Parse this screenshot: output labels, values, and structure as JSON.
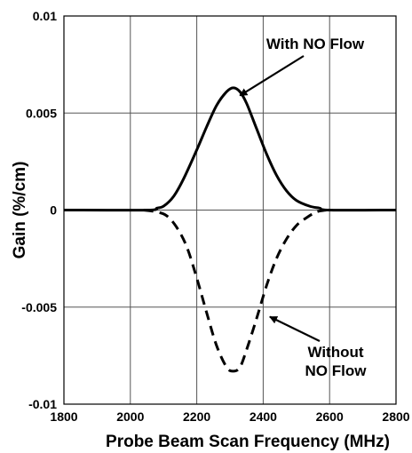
{
  "chart_data": {
    "type": "line",
    "title": "",
    "xlabel": "Probe Beam Scan Frequency (MHz)",
    "ylabel": "Gain (%/cm)",
    "xlim": [
      1800,
      2800
    ],
    "ylim": [
      -0.01,
      0.01
    ],
    "x_ticks": [
      1800,
      2000,
      2200,
      2400,
      2600,
      2800
    ],
    "x_tick_labels": [
      "1800",
      "2000",
      "2200",
      "2400",
      "2600",
      "2800"
    ],
    "y_ticks": [
      -0.01,
      -0.005,
      0,
      0.005,
      0.01
    ],
    "y_tick_labels": [
      "-0.01",
      "-0.005",
      "0",
      "0.005",
      "0.01"
    ],
    "grid": true,
    "legend": "none",
    "series": [
      {
        "name": "With NO Flow",
        "style": "solid",
        "color": "#000000",
        "x": [
          1800,
          2050,
          2080,
          2100,
          2130,
          2160,
          2200,
          2230,
          2260,
          2290,
          2310,
          2330,
          2350,
          2380,
          2410,
          2440,
          2470,
          2500,
          2540,
          2570,
          2600,
          2800
        ],
        "y": [
          0,
          0,
          0.0001,
          0.0002,
          0.0007,
          0.0016,
          0.0031,
          0.0043,
          0.0054,
          0.0061,
          0.0063,
          0.0061,
          0.0055,
          0.0042,
          0.0029,
          0.0018,
          0.001,
          0.0005,
          0.0002,
          0.0001,
          0,
          0
        ]
      },
      {
        "name": "Without NO Flow",
        "style": "dashed",
        "color": "#000000",
        "x": [
          2040,
          2080,
          2110,
          2140,
          2170,
          2200,
          2230,
          2260,
          2290,
          2310,
          2330,
          2350,
          2380,
          2410,
          2440,
          2470,
          2500,
          2530,
          2560,
          2590
        ],
        "y": [
          0,
          -0.0001,
          -0.0003,
          -0.0009,
          -0.0019,
          -0.0035,
          -0.0053,
          -0.007,
          -0.0081,
          -0.0083,
          -0.0081,
          -0.0072,
          -0.0056,
          -0.0039,
          -0.0025,
          -0.0015,
          -0.0008,
          -0.0004,
          -0.0001,
          0
        ]
      }
    ],
    "annotations": [
      {
        "text_lines": [
          "With NO Flow"
        ],
        "points_to_x": 2330,
        "points_to_y": 0.0059
      },
      {
        "text_lines": [
          "Without",
          "NO Flow"
        ],
        "points_to_x": 2420,
        "points_to_y": -0.0055
      }
    ]
  }
}
